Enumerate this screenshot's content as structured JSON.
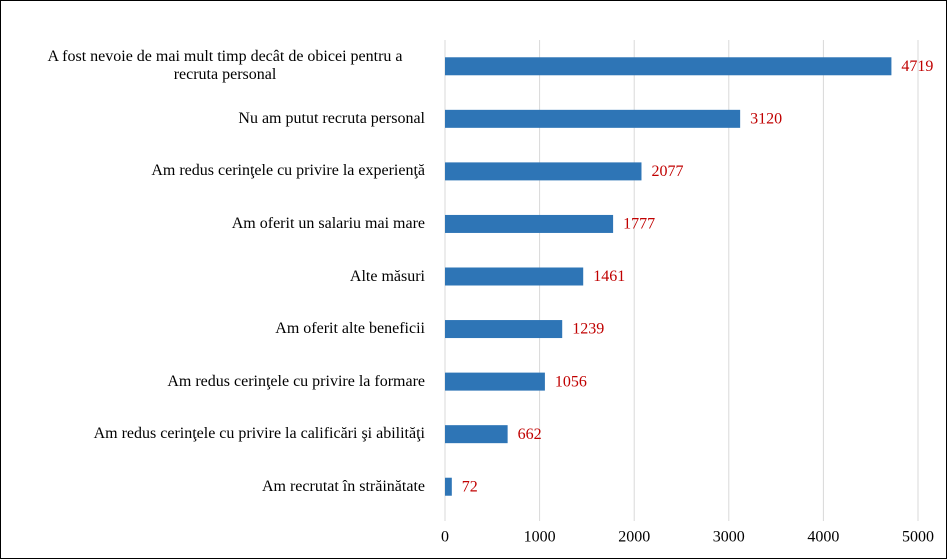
{
  "chart_data": {
    "type": "bar",
    "orientation": "horizontal",
    "categories": [
      "A fost nevoie de mai mult timp decât de obicei pentru a recruta personal",
      "Nu am putut recruta personal",
      "Am redus cerinţele cu privire la experienţă",
      "Am oferit un salariu mai mare",
      "Alte măsuri",
      "Am oferit alte beneficii",
      "Am redus cerinţele cu privire la formare",
      "Am redus cerinţele cu privire la calificări şi abilităţi",
      "Am recrutat în străinătate"
    ],
    "values": [
      4719,
      3120,
      2077,
      1777,
      1461,
      1239,
      1056,
      662,
      72
    ],
    "color": "#2e75b6",
    "label_color": "#c00000",
    "xlim": [
      0,
      5000
    ],
    "xticks": [
      0,
      1000,
      2000,
      3000,
      4000,
      5000
    ],
    "grid": true
  }
}
